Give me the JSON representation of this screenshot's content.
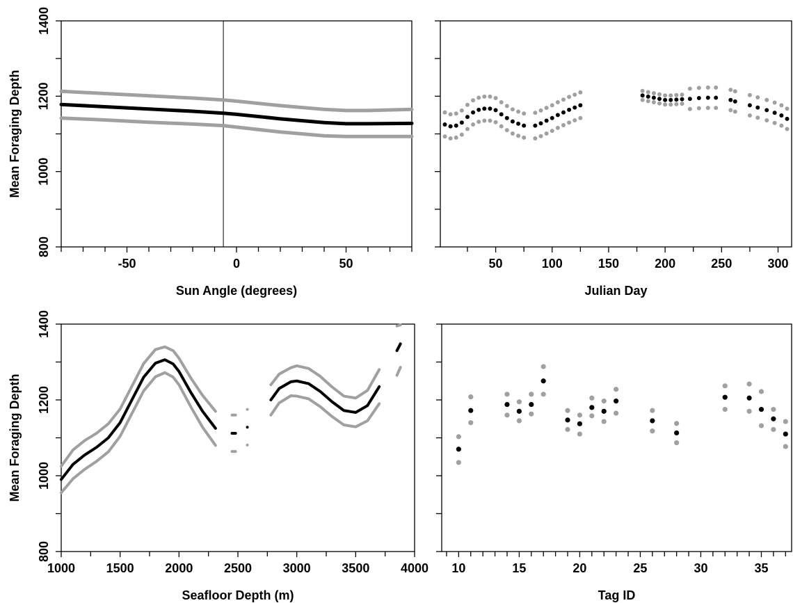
{
  "chart_data": [
    {
      "type": "line",
      "xlabel": "Sun Angle (degrees)",
      "ylabel": "Mean Foraging Depth",
      "xlim": [
        -80,
        80
      ],
      "ylim": [
        800,
        1400
      ],
      "xticks": [
        -50,
        0,
        50
      ],
      "yticks": [
        800,
        1000,
        1200,
        1400
      ],
      "minor_xticks": [
        -80,
        -70,
        -60,
        -40,
        -30,
        -20,
        -10,
        10,
        20,
        30,
        40,
        60,
        70,
        80
      ],
      "minor_yticks": [
        900,
        1100,
        1300
      ],
      "vline": -6,
      "x": [
        -80,
        -60,
        -40,
        -20,
        -6,
        0,
        20,
        40,
        50,
        60,
        80
      ],
      "series": [
        {
          "color": "#a0a0a0",
          "values": [
            1213,
            1207,
            1201,
            1195,
            1190,
            1187,
            1175,
            1165,
            1162,
            1162,
            1165
          ]
        },
        {
          "color": "#a0a0a0",
          "values": [
            1142,
            1137,
            1131,
            1126,
            1122,
            1118,
            1105,
            1095,
            1093,
            1093,
            1093
          ]
        },
        {
          "color": "#000000",
          "values": [
            1178,
            1172,
            1166,
            1160,
            1155,
            1152,
            1140,
            1130,
            1127,
            1127,
            1128
          ]
        }
      ]
    },
    {
      "type": "scatter",
      "xlabel": "Julian Day",
      "xlim": [
        1,
        312
      ],
      "ylim": [
        800,
        1400
      ],
      "xticks": [
        50,
        100,
        150,
        200,
        250,
        300
      ],
      "minor_xticks": [
        25,
        75,
        125,
        175,
        225,
        275
      ],
      "ytick_marks": [
        800,
        900,
        1000,
        1100,
        1200,
        1300,
        1400
      ],
      "x": [
        5,
        10,
        15,
        20,
        25,
        30,
        35,
        40,
        45,
        50,
        55,
        60,
        65,
        70,
        75,
        85,
        90,
        95,
        100,
        105,
        110,
        115,
        120,
        125,
        180,
        185,
        190,
        195,
        200,
        205,
        210,
        215,
        222,
        230,
        238,
        245,
        258,
        262,
        275,
        282,
        290,
        297,
        303,
        308
      ],
      "series": [
        {
          "color": "#a0a0a0",
          "values": [
            1157,
            1152,
            1154,
            1162,
            1177,
            1189,
            1196,
            1199,
            1199,
            1195,
            1184,
            1174,
            1165,
            1159,
            1154,
            1156,
            1162,
            1169,
            1176,
            1184,
            1191,
            1198,
            1204,
            1210,
            1214,
            1211,
            1208,
            1205,
            1202,
            1202,
            1203,
            1204,
            1220,
            1222,
            1223,
            1223,
            1217,
            1213,
            1203,
            1197,
            1190,
            1183,
            1176,
            1167
          ]
        },
        {
          "color": "#a0a0a0",
          "values": [
            1093,
            1088,
            1090,
            1098,
            1113,
            1125,
            1132,
            1135,
            1135,
            1131,
            1120,
            1110,
            1101,
            1095,
            1090,
            1088,
            1094,
            1101,
            1108,
            1116,
            1123,
            1130,
            1136,
            1142,
            1190,
            1187,
            1184,
            1181,
            1178,
            1178,
            1179,
            1180,
            1166,
            1168,
            1169,
            1169,
            1163,
            1159,
            1149,
            1143,
            1136,
            1129,
            1122,
            1113
          ]
        },
        {
          "color": "#000000",
          "values": [
            1125,
            1120,
            1122,
            1130,
            1145,
            1157,
            1164,
            1167,
            1167,
            1163,
            1152,
            1142,
            1133,
            1127,
            1122,
            1122,
            1128,
            1135,
            1142,
            1150,
            1157,
            1164,
            1170,
            1176,
            1202,
            1199,
            1196,
            1193,
            1190,
            1190,
            1191,
            1192,
            1193,
            1195,
            1196,
            1196,
            1190,
            1186,
            1176,
            1170,
            1163,
            1156,
            1149,
            1140
          ]
        }
      ]
    },
    {
      "type": "line",
      "xlabel": "Seafloor Depth (m)",
      "ylabel": "Mean Foraging Depth",
      "xlim": [
        1000,
        4000
      ],
      "ylim": [
        800,
        1400
      ],
      "xticks": [
        1000,
        1500,
        2000,
        2500,
        3000,
        3500,
        4000
      ],
      "yticks": [
        800,
        1000,
        1200,
        1400
      ],
      "minor_xticks": [
        1250,
        1750,
        2250,
        2750,
        3250,
        3750
      ],
      "minor_yticks": [
        900,
        1100,
        1300
      ],
      "x": [
        1000,
        1100,
        1200,
        1300,
        1400,
        1500,
        1600,
        1700,
        1800,
        1880,
        1950,
        2000,
        2100,
        2200,
        2310,
        2400,
        2450,
        2480,
        2530,
        2580,
        2700,
        2780,
        2850,
        2950,
        3000,
        3100,
        3200,
        3300,
        3400,
        3500,
        3600,
        3700,
        3780,
        3850,
        3880
      ],
      "series": [
        {
          "color": "#a0a0a0",
          "values": [
            1025,
            1068,
            1093,
            1112,
            1137,
            1176,
            1236,
            1296,
            1333,
            1340,
            1330,
            1310,
            1258,
            1212,
            1170,
            null,
            1160,
            1160,
            null,
            1175,
            null,
            1240,
            1268,
            1285,
            1290,
            1283,
            1262,
            1234,
            1210,
            1205,
            1225,
            1280,
            null,
            1395,
            1398
          ]
        },
        {
          "color": "#a0a0a0",
          "values": [
            955,
            992,
            1017,
            1038,
            1063,
            1104,
            1164,
            1224,
            1261,
            1272,
            1260,
            1240,
            1182,
            1128,
            1080,
            null,
            1064,
            1064,
            null,
            1081,
            null,
            1160,
            1192,
            1211,
            1210,
            1203,
            1182,
            1156,
            1134,
            1129,
            1145,
            1190,
            null,
            1265,
            1286
          ]
        },
        {
          "color": "#000000",
          "values": [
            990,
            1030,
            1055,
            1075,
            1100,
            1140,
            1200,
            1260,
            1297,
            1306,
            1295,
            1275,
            1220,
            1170,
            1125,
            null,
            1112,
            1112,
            null,
            1128,
            null,
            1200,
            1230,
            1248,
            1250,
            1243,
            1222,
            1195,
            1172,
            1167,
            1185,
            1235,
            null,
            1330,
            1348
          ]
        }
      ]
    },
    {
      "type": "scatter",
      "xlabel": "Tag ID",
      "xlim": [
        8.6,
        37.5
      ],
      "ylim": [
        800,
        1400
      ],
      "xticks": [
        10,
        15,
        20,
        25,
        30,
        35
      ],
      "minor_xticks": [
        9,
        11,
        12,
        13,
        14,
        16,
        17,
        18,
        19,
        21,
        22,
        23,
        24,
        26,
        27,
        28,
        29,
        31,
        32,
        33,
        34,
        36,
        37
      ],
      "ytick_marks": [
        800,
        900,
        1000,
        1100,
        1200,
        1300,
        1400
      ],
      "x": [
        10,
        11,
        14,
        15,
        16,
        17,
        19,
        20,
        21,
        22,
        23,
        26,
        28,
        32,
        34,
        35,
        36,
        37
      ],
      "series": [
        {
          "color": "#a0a0a0",
          "values": [
            1103,
            1208,
            1215,
            1195,
            1215,
            1288,
            1172,
            1160,
            1205,
            1197,
            1228,
            1172,
            1138,
            1237,
            1242,
            1222,
            1175,
            1143
          ]
        },
        {
          "color": "#a0a0a0",
          "values": [
            1035,
            1140,
            1160,
            1145,
            1163,
            1215,
            1122,
            1110,
            1158,
            1143,
            1165,
            1118,
            1087,
            1175,
            1170,
            1132,
            1122,
            1077
          ]
        },
        {
          "color": "#000000",
          "values": [
            1070,
            1172,
            1188,
            1170,
            1188,
            1250,
            1147,
            1137,
            1180,
            1170,
            1197,
            1145,
            1113,
            1207,
            1205,
            1175,
            1150,
            1110
          ]
        }
      ]
    }
  ]
}
